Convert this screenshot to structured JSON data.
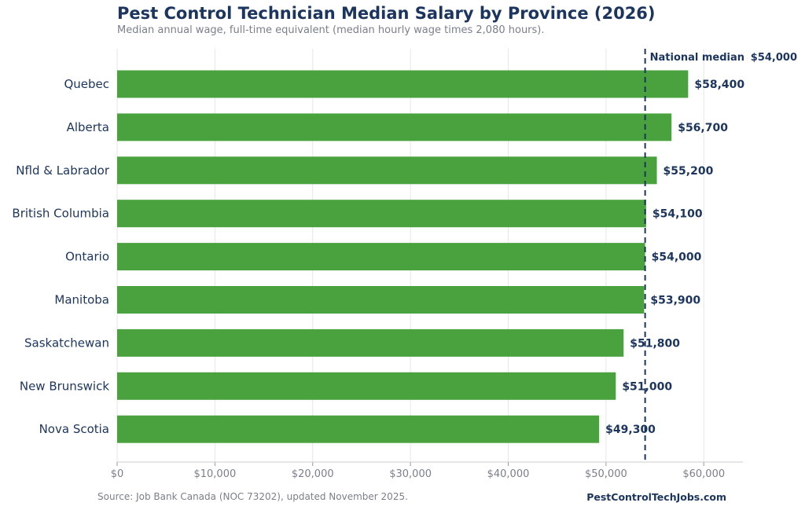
{
  "title": "Pest Control Technician Median Salary by Province (2026)",
  "subtitle": "Median annual wage, full-time equivalent (median hourly wage times 2,080 hours).",
  "source": "Source: Job Bank Canada (NOC 73202), updated November 2025.",
  "brand": "PestControlTechJobs.com",
  "colors": {
    "bar": "#4aa23f",
    "text": "#1b355e",
    "muted": "#7a7f8a",
    "grid": "#e6e6e6"
  },
  "chart_data": {
    "type": "bar",
    "orientation": "horizontal",
    "title": "Pest Control Technician Median Salary by Province (2026)",
    "categories": [
      "Quebec",
      "Alberta",
      "Nfld & Labrador",
      "British Columbia",
      "Ontario",
      "Manitoba",
      "Saskatchewan",
      "New Brunswick",
      "Nova Scotia"
    ],
    "values": [
      58400,
      56700,
      55200,
      54100,
      54000,
      53900,
      51800,
      51000,
      49300
    ],
    "value_labels": [
      "$58,400",
      "$56,700",
      "$55,200",
      "$54,100",
      "$54,000",
      "$53,900",
      "$51,800",
      "$51,000",
      "$49,300"
    ],
    "xlim": [
      0,
      64000
    ],
    "xticks": [
      0,
      10000,
      20000,
      30000,
      40000,
      50000,
      60000
    ],
    "xtick_labels": [
      "$0",
      "$10,000",
      "$20,000",
      "$30,000",
      "$40,000",
      "$50,000",
      "$60,000"
    ],
    "reference_line": {
      "value": 54000,
      "label": "National median",
      "value_label": "$54,000",
      "style": "dashed"
    },
    "grid": "vertical"
  }
}
